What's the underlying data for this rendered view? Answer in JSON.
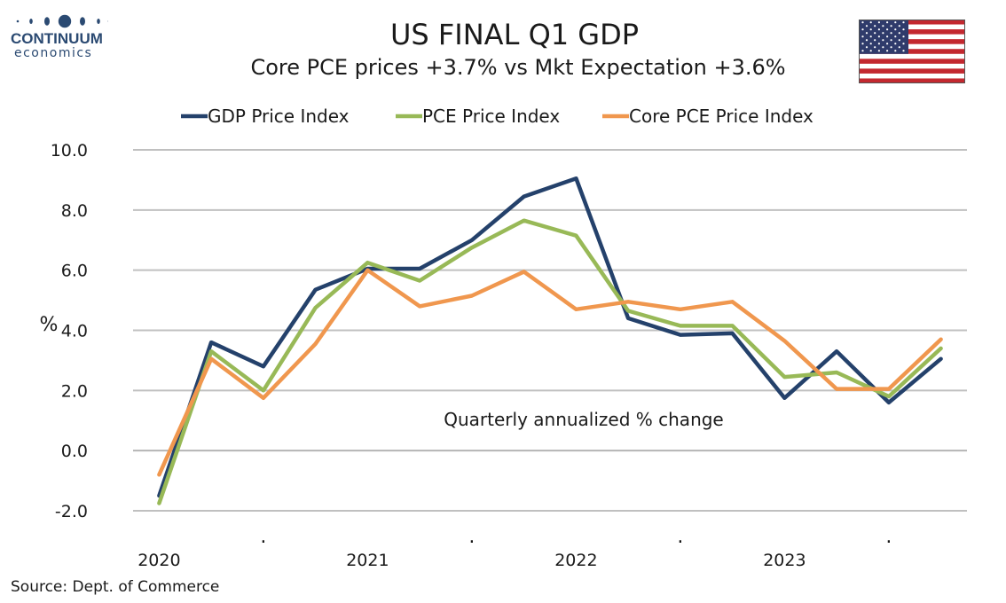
{
  "header": {
    "logo_name": "CONTINUUM",
    "logo_sub": "economics",
    "title": "US FINAL Q1 GDP",
    "subtitle": "Core PCE prices +3.7% vs Mkt Expectation +3.6%"
  },
  "footer": {
    "source": "Source: Dept. of Commerce"
  },
  "flag_icon": "us-flag-icon",
  "chart_data": {
    "type": "line",
    "title": "US FINAL Q1 GDP",
    "subtitle": "Core PCE prices +3.7% vs Mkt Expectation +3.6%",
    "ylabel": "%",
    "annotation": "Quarterly annualized % change",
    "ylim": [
      -2.0,
      10.0
    ],
    "yticks": [
      "10.0",
      "8.0",
      "6.0",
      "4.0",
      "2.0",
      "0.0",
      "-2.0"
    ],
    "ytick_values": [
      10,
      8,
      6,
      4,
      2,
      0,
      -2
    ],
    "x_tick_labels": [
      "2020",
      ".",
      "2021",
      ".",
      "2022",
      ".",
      "2023",
      "."
    ],
    "x": [
      "2020 Q2",
      "2020 Q3",
      "2020 Q4",
      "2021 Q1",
      "2021 Q2",
      "2021 Q3",
      "2021 Q4",
      "2022 Q1",
      "2022 Q2",
      "2022 Q3",
      "2022 Q4",
      "2023 Q1",
      "2023 Q2",
      "2023 Q3",
      "2023 Q4",
      "2024 Q1"
    ],
    "grid": true,
    "legend_position": "top",
    "series": [
      {
        "name": "GDP Price Index",
        "color": "#24416b",
        "values": [
          -1.5,
          3.6,
          2.8,
          5.35,
          6.05,
          6.05,
          7.0,
          8.45,
          9.05,
          4.4,
          3.85,
          3.9,
          1.75,
          3.3,
          1.6,
          3.05
        ]
      },
      {
        "name": "PCE Price Index",
        "color": "#98b957",
        "values": [
          -1.75,
          3.3,
          2.0,
          4.75,
          6.25,
          5.65,
          6.75,
          7.65,
          7.15,
          4.65,
          4.15,
          4.15,
          2.45,
          2.6,
          1.8,
          3.4
        ]
      },
      {
        "name": "Core PCE Price Index",
        "color": "#f0974e",
        "values": [
          -0.8,
          3.05,
          1.75,
          3.55,
          6.0,
          4.8,
          5.15,
          5.95,
          4.7,
          4.95,
          4.7,
          4.95,
          3.65,
          2.05,
          2.05,
          3.7
        ]
      }
    ]
  }
}
